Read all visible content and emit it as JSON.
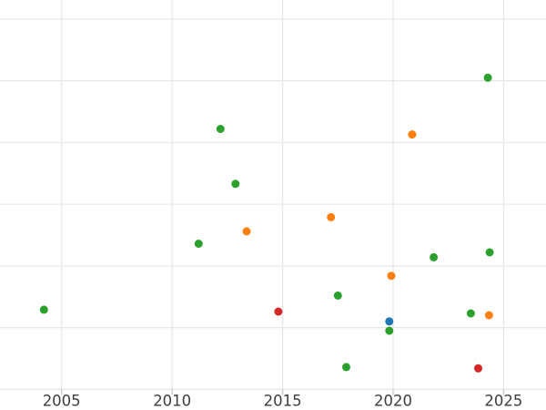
{
  "chart_data": {
    "type": "scatter",
    "title": "",
    "xlabel": "",
    "ylabel": "",
    "grid": true,
    "legend_position": "none",
    "x_axis": {
      "ticks": [
        2005,
        2010,
        2015,
        2020,
        2025
      ],
      "tick_labels": [
        "2005",
        "2010",
        "2015",
        "2020",
        "2025"
      ],
      "range": [
        2002.21,
        2026.92
      ]
    },
    "y_axis": {
      "tick_labels_visible": false,
      "gridlines": [
        0,
        1,
        2,
        3,
        4,
        5,
        6
      ],
      "range": [
        0,
        6.31
      ]
    },
    "series": [
      {
        "name": "green",
        "color": "#2ca02c",
        "points": [
          [
            2004.2,
            1.29
          ],
          [
            2011.2,
            2.36
          ],
          [
            2012.19,
            4.22
          ],
          [
            2012.87,
            3.33
          ],
          [
            2017.5,
            1.52
          ],
          [
            2017.88,
            0.36
          ],
          [
            2019.83,
            0.95
          ],
          [
            2021.84,
            2.14
          ],
          [
            2023.52,
            1.23
          ],
          [
            2024.29,
            5.05
          ],
          [
            2024.37,
            2.22
          ]
        ]
      },
      {
        "name": "orange",
        "color": "#ff7f0e",
        "points": [
          [
            2013.37,
            2.56
          ],
          [
            2017.19,
            2.79
          ],
          [
            2019.92,
            1.84
          ],
          [
            2020.86,
            4.13
          ],
          [
            2024.34,
            1.2
          ]
        ]
      },
      {
        "name": "red",
        "color": "#d62728",
        "points": [
          [
            2014.81,
            1.26
          ],
          [
            2023.85,
            0.34
          ]
        ]
      },
      {
        "name": "blue",
        "color": "#1f77b4",
        "points": [
          [
            2019.83,
            1.1
          ]
        ]
      }
    ],
    "point_radius_px": 4.5,
    "colors": {
      "background": "#ffffff",
      "grid": "#e8e8e8",
      "tick": "#c9c9c9",
      "tick_label": "#3d3d3d"
    }
  }
}
